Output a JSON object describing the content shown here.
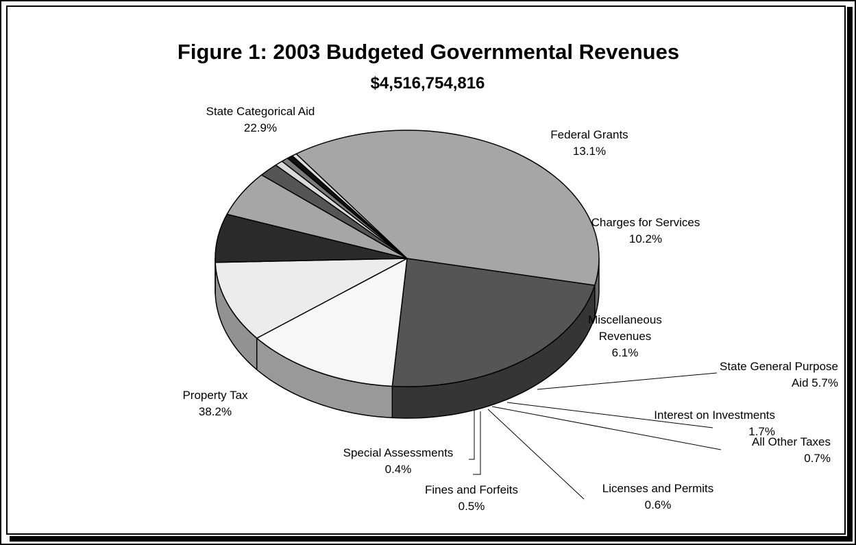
{
  "chart_data": {
    "type": "pie",
    "title": "Figure 1: 2003 Budgeted Governmental Revenues",
    "subtitle": "$4,516,754,816",
    "slices": [
      {
        "id": "state-categorical-aid",
        "label_lines": [
          "State Categorical Aid",
          "22.9%"
        ],
        "value": 22.9,
        "color": "#555555"
      },
      {
        "id": "federal-grants",
        "label_lines": [
          "Federal Grants",
          "13.1%"
        ],
        "value": 13.1,
        "color": "#f7f7f7"
      },
      {
        "id": "charges-for-services",
        "label_lines": [
          "Charges for Services",
          "10.2%"
        ],
        "value": 10.2,
        "color": "#ececec"
      },
      {
        "id": "miscellaneous-revenues",
        "label_lines": [
          "Miscellaneous",
          "Revenues",
          "6.1%"
        ],
        "value": 6.1,
        "color": "#2a2a2a"
      },
      {
        "id": "state-general-purpose-aid",
        "label_lines": [
          "State General Purpose",
          "Aid 5.7%"
        ],
        "value": 5.7,
        "color": "#a6a6a6"
      },
      {
        "id": "interest-on-investments",
        "label_lines": [
          "Interest on Investments",
          "1.7%"
        ],
        "value": 1.7,
        "color": "#555555"
      },
      {
        "id": "all-other-taxes",
        "label_lines": [
          "All Other Taxes",
          "0.7%"
        ],
        "value": 0.7,
        "color": "#d9d9d9"
      },
      {
        "id": "licenses-and-permits",
        "label_lines": [
          "Licenses and Permits",
          "0.6%"
        ],
        "value": 0.6,
        "color": "#7a7a7a"
      },
      {
        "id": "fines-and-forfeits",
        "label_lines": [
          "Fines and Forfeits",
          "0.5%"
        ],
        "value": 0.5,
        "color": "#111111"
      },
      {
        "id": "special-assessments",
        "label_lines": [
          "Special Assessments",
          "0.4%"
        ],
        "value": 0.4,
        "color": "#dddddd"
      },
      {
        "id": "property-tax",
        "label_lines": [
          "Property Tax",
          "38.2%"
        ],
        "value": 38.2,
        "color": "#a6a6a6"
      }
    ]
  }
}
